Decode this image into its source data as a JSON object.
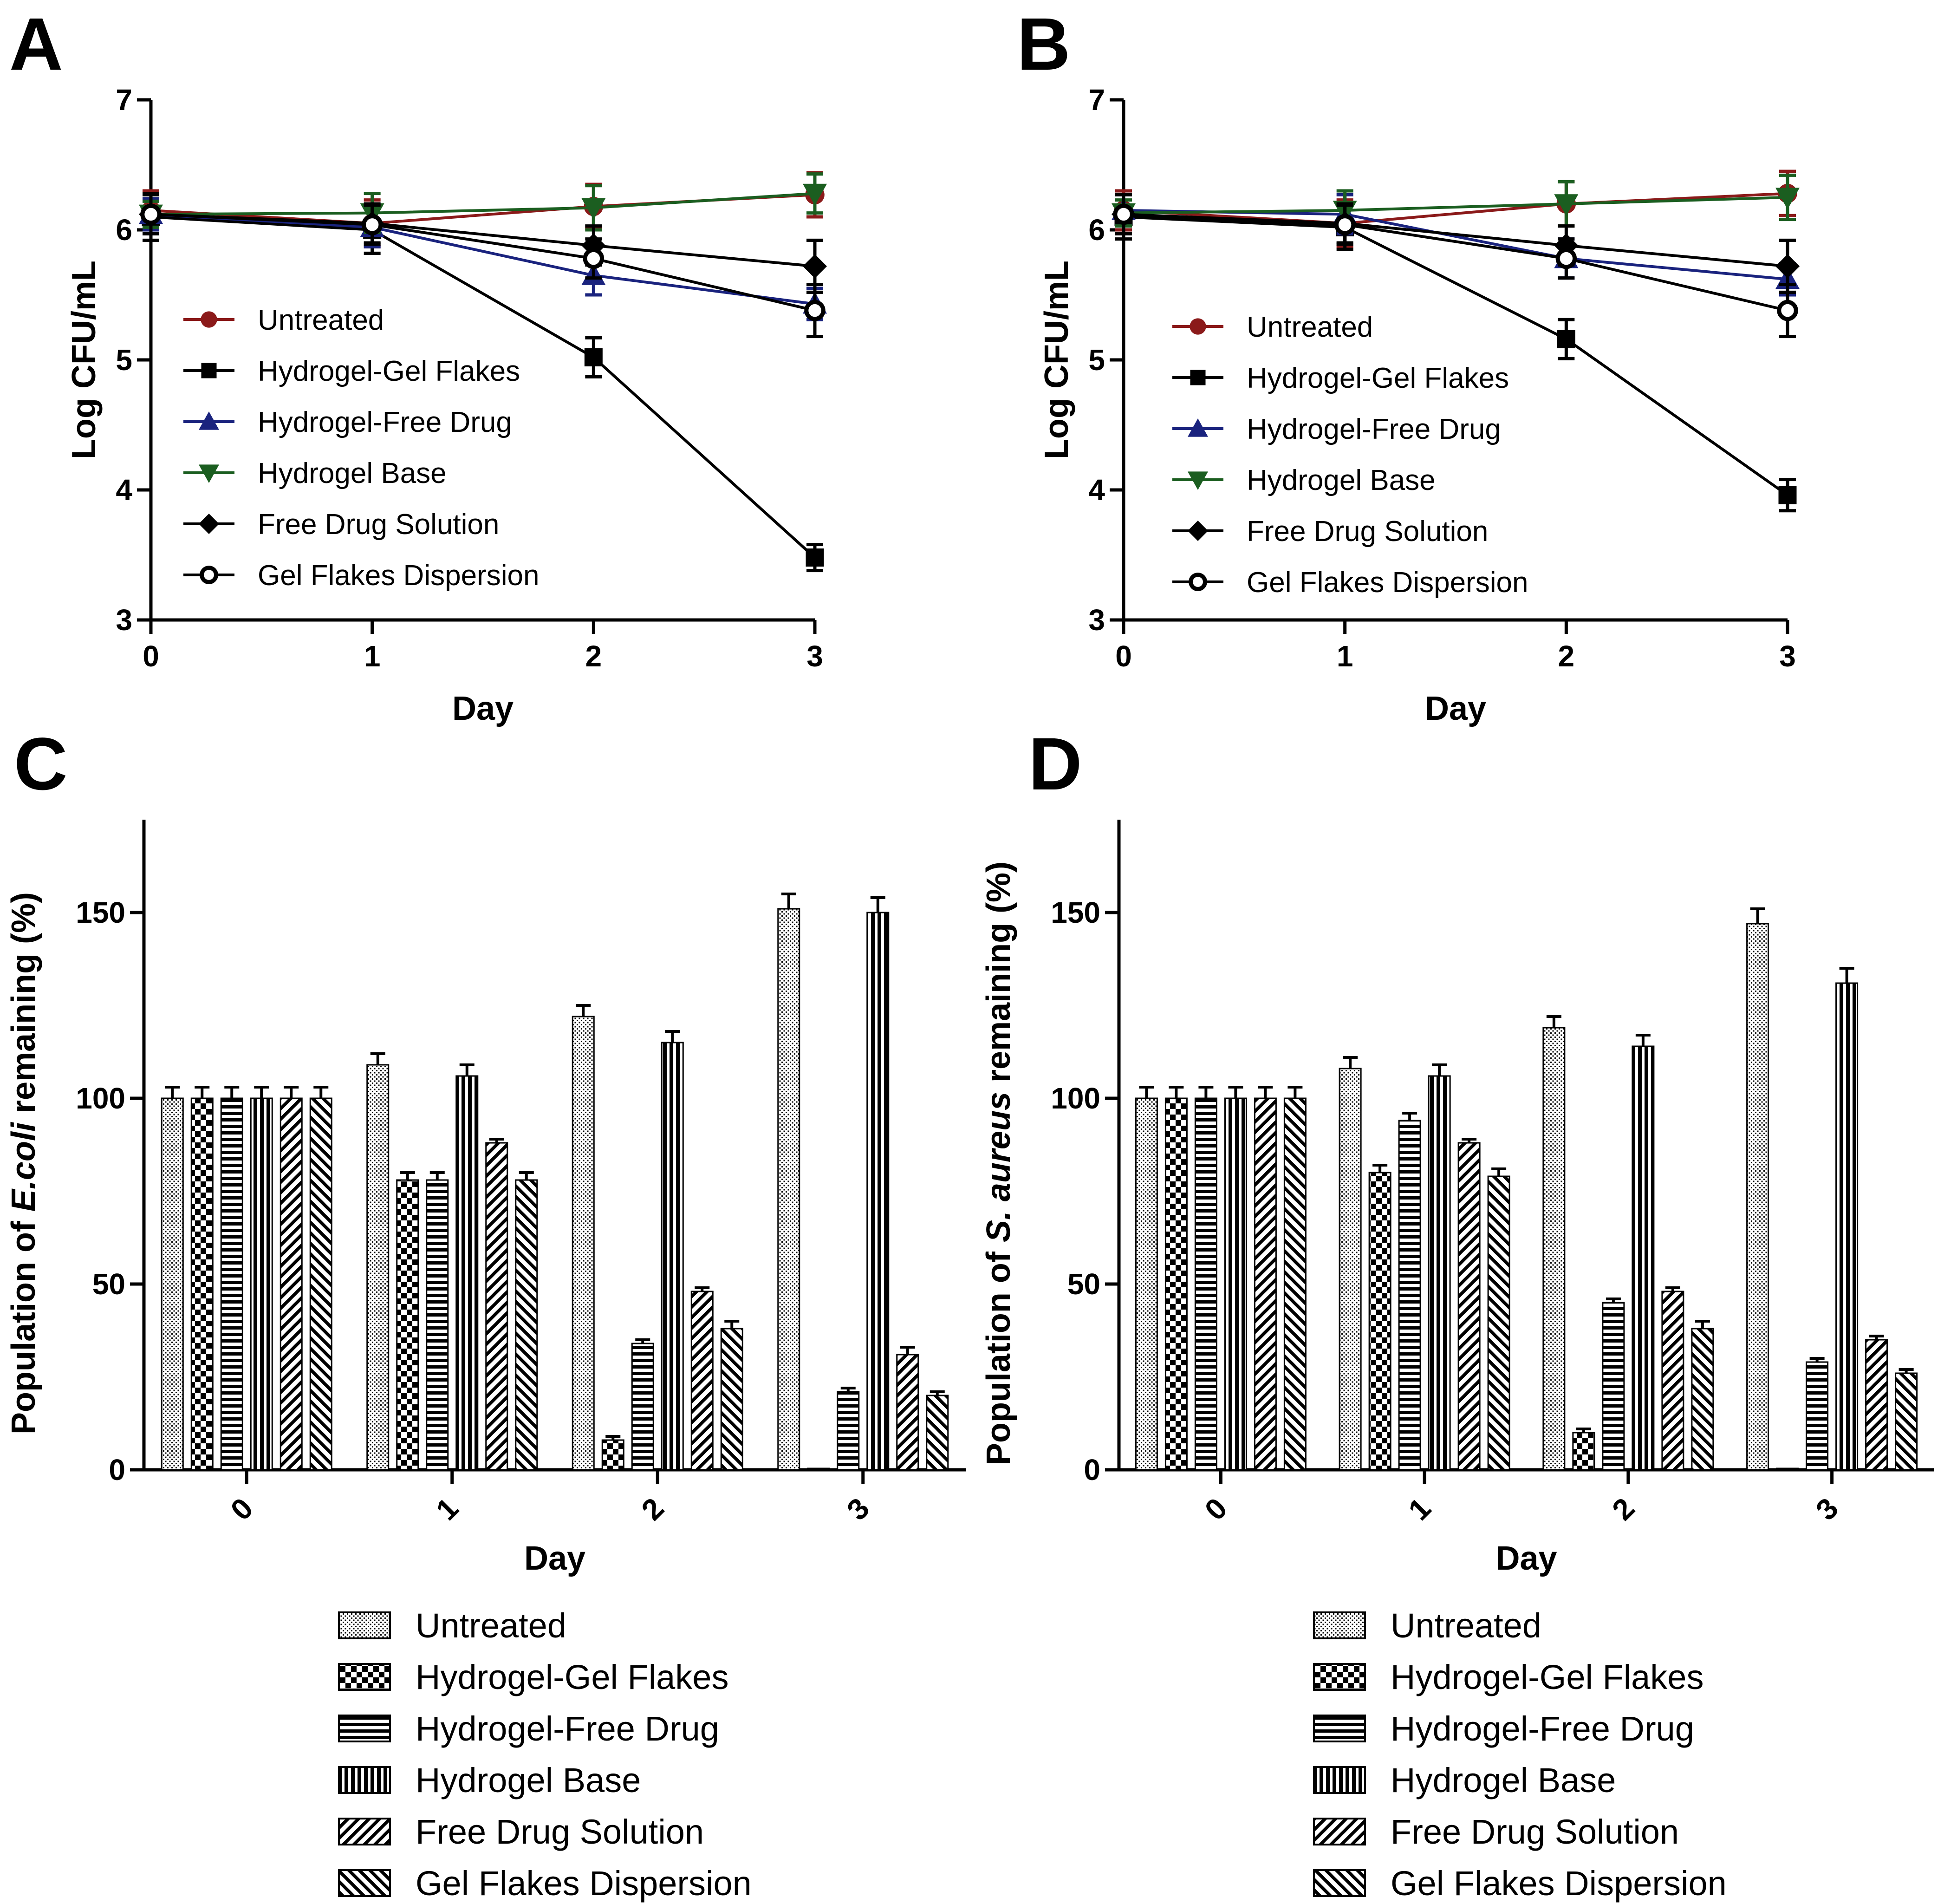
{
  "figure": {
    "series_styles": [
      {
        "name": "Untreated",
        "color": "#8b1a1a",
        "marker": "circle",
        "pattern": "dots"
      },
      {
        "name": "Hydrogel-Gel Flakes",
        "color": "#000000",
        "marker": "square",
        "pattern": "checker"
      },
      {
        "name": "Hydrogel-Free Drug",
        "color": "#1a237e",
        "marker": "triangle-up",
        "pattern": "hlines"
      },
      {
        "name": "Hydrogel Base",
        "color": "#1b5e20",
        "marker": "triangle-down",
        "pattern": "vlines"
      },
      {
        "name": "Free Drug Solution",
        "color": "#000000",
        "marker": "diamond",
        "pattern": "diag-up"
      },
      {
        "name": "Gel Flakes Dispersion",
        "color": "#000000",
        "marker": "open-circle",
        "pattern": "diag-down"
      }
    ]
  },
  "chart_data": [
    {
      "panel": "A",
      "type": "line",
      "xlabel": "Day",
      "ylabel": "Log CFU/mL",
      "x": [
        0,
        1,
        2,
        3
      ],
      "x_ticks": [
        "0",
        "1",
        "2",
        "3"
      ],
      "y_ticks": [
        "3",
        "4",
        "5",
        "6",
        "7"
      ],
      "xlim": [
        0,
        3
      ],
      "ylim": [
        3,
        7
      ],
      "legend_position": "left-middle",
      "series": [
        {
          "name": "Untreated",
          "values": [
            6.15,
            6.05,
            6.18,
            6.27
          ],
          "errors": [
            0.15,
            0.18,
            0.17,
            0.17
          ]
        },
        {
          "name": "Hydrogel-Gel Flakes",
          "values": [
            6.1,
            6.0,
            5.02,
            3.48
          ],
          "errors": [
            0.18,
            0.18,
            0.15,
            0.1
          ]
        },
        {
          "name": "Hydrogel-Free Drug",
          "values": [
            6.12,
            6.02,
            5.65,
            5.43
          ],
          "errors": [
            0.12,
            0.15,
            0.15,
            0.12
          ]
        },
        {
          "name": "Hydrogel Base",
          "values": [
            6.12,
            6.13,
            6.17,
            6.28
          ],
          "errors": [
            0.1,
            0.15,
            0.17,
            0.15
          ]
        },
        {
          "name": "Free Drug Solution",
          "values": [
            6.12,
            6.05,
            5.88,
            5.72
          ],
          "errors": [
            0.15,
            0.15,
            0.15,
            0.2
          ]
        },
        {
          "name": "Gel Flakes Dispersion",
          "values": [
            6.12,
            6.04,
            5.78,
            5.38
          ],
          "errors": [
            0.15,
            0.15,
            0.15,
            0.2
          ]
        }
      ]
    },
    {
      "panel": "B",
      "type": "line",
      "xlabel": "Day",
      "ylabel": "Log CFU/mL",
      "x": [
        0,
        1,
        2,
        3
      ],
      "x_ticks": [
        "0",
        "1",
        "2",
        "3"
      ],
      "y_ticks": [
        "3",
        "4",
        "5",
        "6",
        "7"
      ],
      "xlim": [
        0,
        3
      ],
      "ylim": [
        3,
        7
      ],
      "legend_position": "left-middle",
      "series": [
        {
          "name": "Untreated",
          "values": [
            6.15,
            6.05,
            6.2,
            6.28
          ],
          "errors": [
            0.15,
            0.18,
            0.17,
            0.17
          ]
        },
        {
          "name": "Hydrogel-Gel Flakes",
          "values": [
            6.1,
            6.02,
            5.16,
            3.96
          ],
          "errors": [
            0.17,
            0.17,
            0.15,
            0.12
          ]
        },
        {
          "name": "Hydrogel-Free Drug",
          "values": [
            6.15,
            6.12,
            5.78,
            5.62
          ],
          "errors": [
            0.12,
            0.15,
            0.15,
            0.12
          ]
        },
        {
          "name": "Hydrogel Base",
          "values": [
            6.13,
            6.15,
            6.2,
            6.25
          ],
          "errors": [
            0.1,
            0.15,
            0.17,
            0.17
          ]
        },
        {
          "name": "Free Drug Solution",
          "values": [
            6.12,
            6.05,
            5.88,
            5.72
          ],
          "errors": [
            0.15,
            0.15,
            0.15,
            0.2
          ]
        },
        {
          "name": "Gel Flakes Dispersion",
          "values": [
            6.12,
            6.04,
            5.78,
            5.38
          ],
          "errors": [
            0.15,
            0.15,
            0.15,
            0.2
          ]
        }
      ]
    },
    {
      "panel": "C",
      "type": "bar",
      "xlabel": "Day",
      "ylabel_parts": [
        "Population of ",
        "E.coli",
        " remaining (%)"
      ],
      "categories": [
        "0",
        "1",
        "2",
        "3"
      ],
      "y_ticks": [
        "0",
        "50",
        "100",
        "150"
      ],
      "ylim": [
        0,
        175
      ],
      "legend_position": "bottom",
      "series": [
        {
          "name": "Untreated",
          "values": [
            100,
            109,
            122,
            151
          ],
          "errors": [
            3,
            3,
            3,
            4
          ]
        },
        {
          "name": "Hydrogel-Gel Flakes",
          "values": [
            100,
            78,
            8,
            0
          ],
          "errors": [
            3,
            2,
            1,
            0
          ]
        },
        {
          "name": "Hydrogel-Free Drug",
          "values": [
            100,
            78,
            34,
            21
          ],
          "errors": [
            3,
            2,
            1,
            1
          ]
        },
        {
          "name": "Hydrogel Base",
          "values": [
            100,
            106,
            115,
            150
          ],
          "errors": [
            3,
            3,
            3,
            4
          ]
        },
        {
          "name": "Free Drug Solution",
          "values": [
            100,
            88,
            48,
            31
          ],
          "errors": [
            3,
            1,
            1,
            2
          ]
        },
        {
          "name": "Gel Flakes Dispersion",
          "values": [
            100,
            78,
            38,
            20
          ],
          "errors": [
            3,
            2,
            2,
            1
          ]
        }
      ]
    },
    {
      "panel": "D",
      "type": "bar",
      "xlabel": "Day",
      "ylabel_parts": [
        "Population of ",
        "S. aureus",
        " remaining (%)"
      ],
      "categories": [
        "0",
        "1",
        "2",
        "3"
      ],
      "y_ticks": [
        "0",
        "50",
        "100",
        "150"
      ],
      "ylim": [
        0,
        175
      ],
      "legend_position": "bottom",
      "series": [
        {
          "name": "Untreated",
          "values": [
            100,
            108,
            119,
            147
          ],
          "errors": [
            3,
            3,
            3,
            4
          ]
        },
        {
          "name": "Hydrogel-Gel Flakes",
          "values": [
            100,
            80,
            10,
            0
          ],
          "errors": [
            3,
            2,
            1,
            0
          ]
        },
        {
          "name": "Hydrogel-Free Drug",
          "values": [
            100,
            94,
            45,
            29
          ],
          "errors": [
            3,
            2,
            1,
            1
          ]
        },
        {
          "name": "Hydrogel Base",
          "values": [
            100,
            106,
            114,
            131
          ],
          "errors": [
            3,
            3,
            3,
            4
          ]
        },
        {
          "name": "Free Drug Solution",
          "values": [
            100,
            88,
            48,
            35
          ],
          "errors": [
            3,
            1,
            1,
            1
          ]
        },
        {
          "name": "Gel Flakes Dispersion",
          "values": [
            100,
            79,
            38,
            26
          ],
          "errors": [
            3,
            2,
            2,
            1
          ]
        }
      ]
    }
  ]
}
